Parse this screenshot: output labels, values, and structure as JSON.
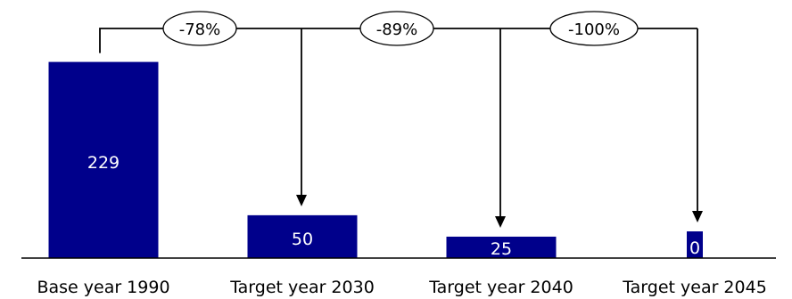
{
  "chart_data": {
    "type": "bar",
    "categories": [
      "Base year 1990",
      "Target year 2030",
      "Target year 2040",
      "Target year 2045"
    ],
    "values": [
      229,
      50,
      25,
      0
    ],
    "value_labels": [
      "229",
      "50",
      "25",
      "0"
    ],
    "reductions": [
      "-78%",
      "-89%",
      "-100%"
    ],
    "title": "",
    "xlabel": "",
    "ylabel": "",
    "ylim": [
      0,
      240
    ],
    "grid": false,
    "legend": "none",
    "colors": {
      "bar": "#00008B",
      "bar_label": "#ffffff",
      "line": "#000000",
      "text": "#000000"
    }
  }
}
